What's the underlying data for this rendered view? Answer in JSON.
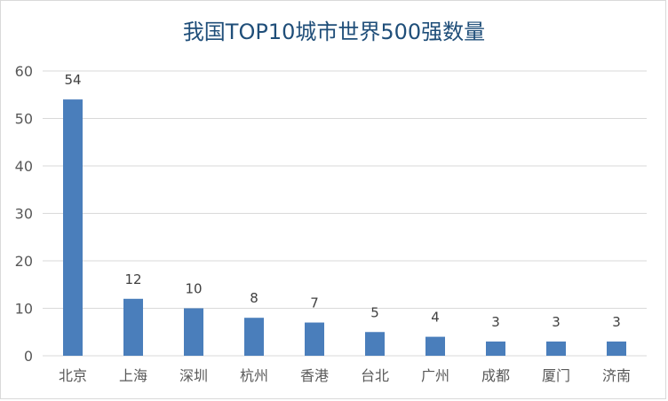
{
  "chart_data": {
    "type": "bar",
    "title": "我国TOP10城市世界500强数量",
    "xlabel": "",
    "ylabel": "",
    "categories": [
      "北京",
      "上海",
      "深圳",
      "杭州",
      "香港",
      "台北",
      "广州",
      "成都",
      "厦门",
      "济南"
    ],
    "values": [
      54,
      12,
      10,
      8,
      7,
      5,
      4,
      3,
      3,
      3
    ],
    "data_labels": [
      "54",
      "12",
      "10",
      "8",
      "7",
      "5",
      "4",
      "3",
      "3",
      "3"
    ],
    "ylim": [
      0,
      60
    ],
    "yticks": [
      "0",
      "10",
      "20",
      "30",
      "40",
      "50",
      "60"
    ],
    "grid": true,
    "legend": "none",
    "colors": {
      "bar": "#4a7ebb",
      "grid": "#d9d9d9",
      "title": "#1f4e79"
    }
  }
}
